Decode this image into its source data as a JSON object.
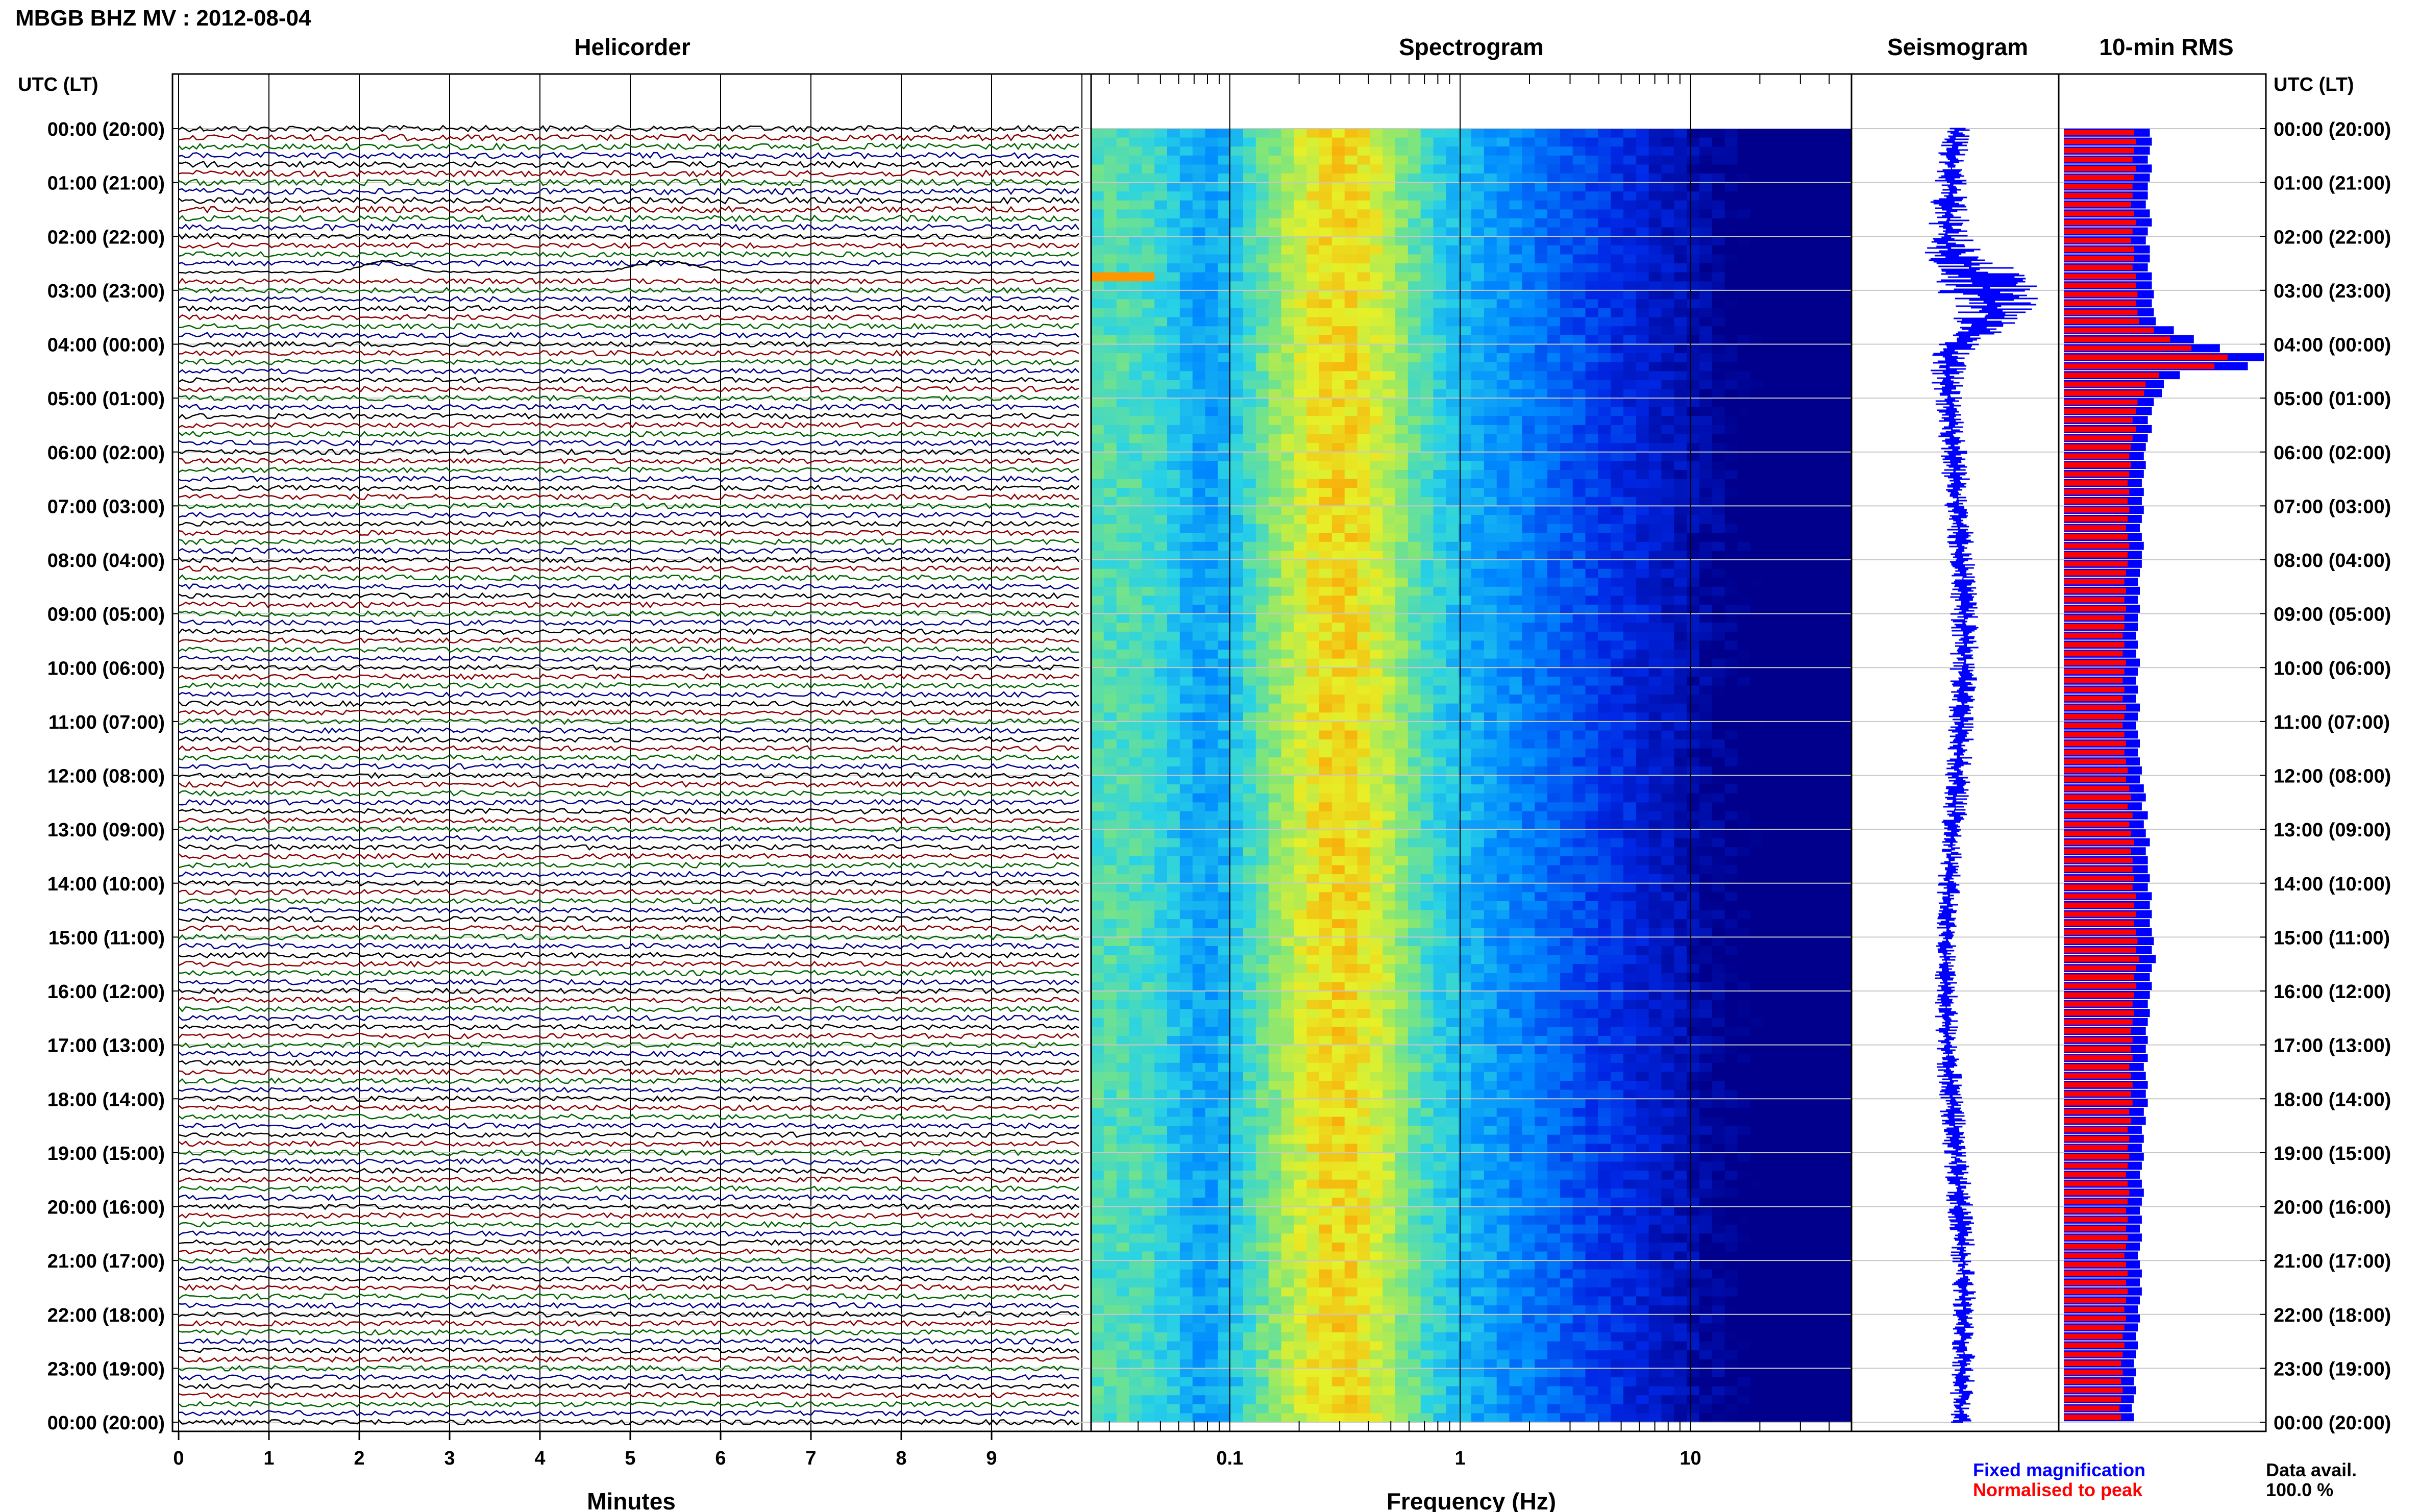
{
  "header": {
    "station_title": "MBGB BHZ MV : 2012-08-04"
  },
  "panels": {
    "helicorder_title": "Helicorder",
    "spectrogram_title": "Spectrogram",
    "seismogram_title": "Seismogram",
    "rms_title": "10-min RMS"
  },
  "axes": {
    "left_time_label": "UTC (LT)",
    "right_time_label": "UTC (LT)",
    "time_ticks": [
      "00:00 (20:00)",
      "01:00 (21:00)",
      "02:00 (22:00)",
      "03:00 (23:00)",
      "04:00 (00:00)",
      "05:00 (01:00)",
      "06:00 (02:00)",
      "07:00 (03:00)",
      "08:00 (04:00)",
      "09:00 (05:00)",
      "10:00 (06:00)",
      "11:00 (07:00)",
      "12:00 (08:00)",
      "13:00 (09:00)",
      "14:00 (10:00)",
      "15:00 (11:00)",
      "16:00 (12:00)",
      "17:00 (13:00)",
      "18:00 (14:00)",
      "19:00 (15:00)",
      "20:00 (16:00)",
      "21:00 (17:00)",
      "22:00 (18:00)",
      "23:00 (19:00)",
      "00:00 (20:00)"
    ],
    "minutes_label": "Minutes",
    "minute_ticks": [
      "0",
      "1",
      "2",
      "3",
      "4",
      "5",
      "6",
      "7",
      "8",
      "9"
    ],
    "frequency_label": "Frequency (Hz)",
    "frequency_ticks": [
      "0.1",
      "1",
      "10"
    ]
  },
  "footer": {
    "fixed_magnification": "Fixed magnification",
    "normalised_to_peak": "Normalised to peak",
    "data_avail_label": "Data avail.",
    "data_avail_value": "100.0 %"
  },
  "colors": {
    "helicorder_traces": [
      "#000000",
      "#8b0000",
      "#006400",
      "#00008b"
    ],
    "rms_fixed": "#0000ff",
    "rms_normalised": "#ff0000",
    "seismogram": "#0000ff"
  },
  "chart_data": [
    {
      "type": "line",
      "title": "Helicorder",
      "xlabel": "Minutes",
      "xlim": [
        0,
        10
      ],
      "rows": 144,
      "row_minutes": 10,
      "event_row_approx_utc": "02:40",
      "event_minutes_approx": [
        2.3,
        5.4
      ]
    },
    {
      "type": "heatmap",
      "title": "Spectrogram",
      "xlabel": "Frequency (Hz)",
      "xscale": "log",
      "xlim": [
        0.025,
        50
      ],
      "peak_frequency_hz_approx": 0.3,
      "event_row_approx_utc": "02:40"
    },
    {
      "type": "line",
      "title": "Seismogram",
      "values_relative_hourly": [
        0.12,
        0.13,
        0.22,
        0.55,
        0.2,
        0.12,
        0.11,
        0.11,
        0.1,
        0.11,
        0.11,
        0.1,
        0.1,
        0.09,
        0.08,
        0.07,
        0.08,
        0.09,
        0.09,
        0.1,
        0.1,
        0.09,
        0.08,
        0.09,
        0.09
      ]
    },
    {
      "type": "bar",
      "title": "10-min RMS",
      "series": [
        {
          "name": "Fixed magnification",
          "values": [
            0.43,
            0.44,
            0.43,
            0.42,
            0.44,
            0.43,
            0.42,
            0.42,
            0.41,
            0.43,
            0.44,
            0.42,
            0.41,
            0.43,
            0.43,
            0.42,
            0.44,
            0.44,
            0.45,
            0.44,
            0.45,
            0.46,
            0.55,
            0.65,
            0.78,
            1.0,
            0.92,
            0.58,
            0.5,
            0.49,
            0.45,
            0.44,
            0.42,
            0.44,
            0.42,
            0.41,
            0.4,
            0.41,
            0.4,
            0.39,
            0.4,
            0.39,
            0.4,
            0.39,
            0.38,
            0.39,
            0.4,
            0.39,
            0.39,
            0.38,
            0.37,
            0.38,
            0.37,
            0.38,
            0.37,
            0.37,
            0.36,
            0.37,
            0.36,
            0.38,
            0.37,
            0.36,
            0.37,
            0.36,
            0.38,
            0.37,
            0.36,
            0.37,
            0.38,
            0.37,
            0.38,
            0.39,
            0.38,
            0.4,
            0.41,
            0.39,
            0.42,
            0.4,
            0.41,
            0.43,
            0.41,
            0.42,
            0.42,
            0.43,
            0.42,
            0.44,
            0.43,
            0.44,
            0.43,
            0.44,
            0.45,
            0.44,
            0.46,
            0.44,
            0.43,
            0.44,
            0.43,
            0.42,
            0.43,
            0.42,
            0.41,
            0.42,
            0.41,
            0.42,
            0.4,
            0.41,
            0.42,
            0.41,
            0.42,
            0.4,
            0.41,
            0.39,
            0.4,
            0.39,
            0.4,
            0.39,
            0.38,
            0.39,
            0.4,
            0.39,
            0.38,
            0.39,
            0.38,
            0.39,
            0.38,
            0.37,
            0.38,
            0.39,
            0.38,
            0.39,
            0.38,
            0.37,
            0.38,
            0.37,
            0.36,
            0.37,
            0.36,
            0.35,
            0.36,
            0.35,
            0.36,
            0.35,
            0.34,
            0.35
          ]
        },
        {
          "name": "Normalised to peak",
          "values_scale": 0.88
        }
      ]
    }
  ]
}
